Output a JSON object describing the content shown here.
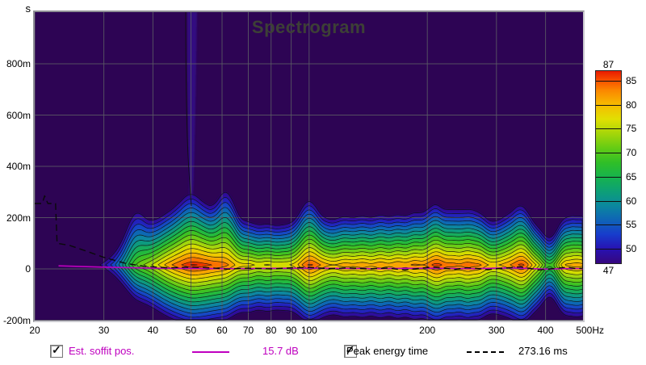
{
  "title": "Spectrogram",
  "y_axis": {
    "unit_label": "s",
    "ticks": [
      {
        "label": "800m",
        "t": 0.8
      },
      {
        "label": "600m",
        "t": 0.6
      },
      {
        "label": "400m",
        "t": 0.4
      },
      {
        "label": "200m",
        "t": 0.2
      },
      {
        "label": "0",
        "t": 0.0
      },
      {
        "label": "-200m",
        "t": -0.2
      }
    ]
  },
  "x_axis": {
    "ticks": [
      {
        "label": "20",
        "f": 20
      },
      {
        "label": "30",
        "f": 30
      },
      {
        "label": "40",
        "f": 40
      },
      {
        "label": "50",
        "f": 50
      },
      {
        "label": "60",
        "f": 60
      },
      {
        "label": "70",
        "f": 70
      },
      {
        "label": "80",
        "f": 80
      },
      {
        "label": "90",
        "f": 90
      },
      {
        "label": "100",
        "f": 100
      },
      {
        "label": "200",
        "f": 200
      },
      {
        "label": "300",
        "f": 300
      },
      {
        "label": "400",
        "f": 400
      },
      {
        "label": "500Hz",
        "f": 500
      }
    ]
  },
  "colorbar": {
    "top_label": "87",
    "bottom_label": "47",
    "min": 47,
    "max": 87,
    "side_ticks": [
      85,
      80,
      75,
      70,
      65,
      60,
      55,
      50
    ],
    "stops": [
      [
        47,
        "#36077e"
      ],
      [
        50,
        "#2712b2"
      ],
      [
        53,
        "#173ccc"
      ],
      [
        56,
        "#0f64b6"
      ],
      [
        59,
        "#0b889e"
      ],
      [
        62,
        "#0da076"
      ],
      [
        65,
        "#17b44c"
      ],
      [
        68,
        "#30bf27"
      ],
      [
        71,
        "#65cc14"
      ],
      [
        74,
        "#a5d609"
      ],
      [
        77,
        "#e1df02"
      ],
      [
        80,
        "#f6bb00"
      ],
      [
        83,
        "#fb8700"
      ],
      [
        85,
        "#f85100"
      ],
      [
        87,
        "#e91b00"
      ]
    ]
  },
  "legend": {
    "soffit_label": "Est. soffit pos.",
    "soffit_value": "15.7 dB",
    "soffit_color": "#c000c0",
    "peak_label": "Peak energy time",
    "peak_value": "273.16 ms"
  },
  "chart_data": {
    "type": "heatmap",
    "title": "Spectrogram",
    "x_scale": "log",
    "x_range_hz": [
      20,
      500
    ],
    "y_range_s": [
      -0.2,
      1.0
    ],
    "level_range_db": [
      47,
      87
    ],
    "contour_step_db": 2.5,
    "grid": true,
    "background_color": "#2d0454",
    "grid_color": "#5c5c66",
    "contour_levels_db": [
      47,
      49.5,
      52,
      54.5,
      57,
      59.5,
      62,
      64.5,
      67,
      69.5,
      72,
      74.5,
      77,
      79.5,
      82,
      84.5,
      86
    ],
    "energy_band_center_s": 0.017,
    "energy_band_bottom_s": -0.198,
    "ridge": {
      "f_hz": 50,
      "extends_to_s": 1.0,
      "note": "faint vertical decay ridge at 50 Hz"
    },
    "spectral_peaks": [
      [
        20,
        38,
        1.6
      ],
      [
        26,
        40,
        1.6
      ],
      [
        29,
        46,
        1.8
      ],
      [
        32,
        54,
        2.0
      ],
      [
        34,
        62,
        2.6
      ],
      [
        36,
        70,
        3.2
      ],
      [
        38,
        72,
        2.2
      ],
      [
        40,
        75,
        1.9
      ],
      [
        43,
        80,
        1.9
      ],
      [
        46,
        83.5,
        2.0
      ],
      [
        50,
        86.5,
        2.35
      ],
      [
        54,
        85.5,
        1.95
      ],
      [
        58,
        84,
        1.9
      ],
      [
        62,
        83,
        2.95
      ],
      [
        65,
        79,
        2.0
      ],
      [
        68,
        77.5,
        1.7
      ],
      [
        71,
        78.5,
        1.75
      ],
      [
        74,
        75.5,
        1.65
      ],
      [
        78,
        78,
        1.7
      ],
      [
        82,
        76,
        1.62
      ],
      [
        86,
        77,
        1.68
      ],
      [
        90,
        76.5,
        1.7
      ],
      [
        95,
        81,
        1.9
      ],
      [
        100,
        86.3,
        2.3
      ],
      [
        105,
        83,
        1.8
      ],
      [
        110,
        80.5,
        1.7
      ],
      [
        116,
        79,
        1.72
      ],
      [
        123,
        81.5,
        1.8
      ],
      [
        130,
        80,
        1.7
      ],
      [
        137,
        82,
        1.82
      ],
      [
        144,
        79.5,
        1.7
      ],
      [
        152,
        82.5,
        1.85
      ],
      [
        160,
        79.5,
        1.72
      ],
      [
        168,
        83,
        1.85
      ],
      [
        176,
        80,
        1.7
      ],
      [
        185,
        83.5,
        1.9
      ],
      [
        195,
        81,
        1.75
      ],
      [
        205,
        85,
        2.05
      ],
      [
        215,
        86.2,
        1.9
      ],
      [
        224,
        82,
        1.75
      ],
      [
        233,
        84.5,
        2.05
      ],
      [
        242,
        81,
        1.8
      ],
      [
        252,
        85.5,
        1.95
      ],
      [
        262,
        82,
        1.8
      ],
      [
        272,
        84,
        1.9
      ],
      [
        282,
        79.5,
        1.7
      ],
      [
        295,
        78.5,
        1.65
      ],
      [
        310,
        80,
        1.75
      ],
      [
        325,
        82,
        1.85
      ],
      [
        338,
        84,
        1.9
      ],
      [
        350,
        87,
        2.05
      ],
      [
        362,
        82,
        1.75
      ],
      [
        375,
        78,
        1.65
      ],
      [
        390,
        74,
        1.6
      ],
      [
        400,
        70,
        1.6
      ],
      [
        408,
        64,
        1.55
      ],
      [
        416,
        68,
        1.6
      ],
      [
        428,
        73,
        1.7
      ],
      [
        438,
        78,
        1.75
      ],
      [
        450,
        82,
        1.9
      ],
      [
        462,
        79,
        1.7
      ],
      [
        475,
        81,
        1.8
      ],
      [
        488,
        83.5,
        1.9
      ],
      [
        495,
        78,
        1.7
      ],
      [
        500,
        73,
        1.6
      ]
    ],
    "peak_energy_curve": [
      [
        20,
        0.255
      ],
      [
        20.9,
        0.255
      ],
      [
        21.2,
        0.285
      ],
      [
        21.6,
        0.255
      ],
      [
        22.6,
        0.255
      ],
      [
        22.8,
        0.1
      ],
      [
        24.5,
        0.092
      ],
      [
        27,
        0.07
      ],
      [
        30,
        0.045
      ],
      [
        34,
        0.022
      ],
      [
        38,
        0.01
      ],
      [
        44,
        0.004
      ],
      [
        50,
        0.007
      ],
      [
        56,
        0.004
      ],
      [
        62,
        -0.001
      ],
      [
        70,
        0.003
      ],
      [
        80,
        0.0
      ],
      [
        90,
        0.004
      ],
      [
        100,
        0.006
      ],
      [
        112,
        0.001
      ],
      [
        126,
        0.004
      ],
      [
        140,
        0.0
      ],
      [
        158,
        0.003
      ],
      [
        175,
        -0.004
      ],
      [
        190,
        0.002
      ],
      [
        205,
        0.007
      ],
      [
        220,
        0.003
      ],
      [
        235,
        -0.002
      ],
      [
        252,
        0.005
      ],
      [
        268,
        0.002
      ],
      [
        285,
        -0.003
      ],
      [
        305,
        0.002
      ],
      [
        325,
        0.005
      ],
      [
        345,
        0.008
      ],
      [
        365,
        0.002
      ],
      [
        385,
        -0.004
      ],
      [
        405,
        -0.001
      ],
      [
        430,
        0.003
      ],
      [
        455,
        0.006
      ],
      [
        478,
        0.001
      ],
      [
        500,
        0.003
      ]
    ],
    "soffit_curve": [
      [
        23,
        0.012
      ],
      [
        30,
        0.007
      ],
      [
        40,
        0.003
      ],
      [
        60,
        0.001
      ],
      [
        100,
        0.003
      ],
      [
        150,
        0.001
      ],
      [
        200,
        0.003
      ],
      [
        260,
        0.001
      ],
      [
        330,
        0.004
      ],
      [
        400,
        -0.001
      ],
      [
        460,
        0.002
      ],
      [
        500,
        0.001
      ]
    ]
  }
}
